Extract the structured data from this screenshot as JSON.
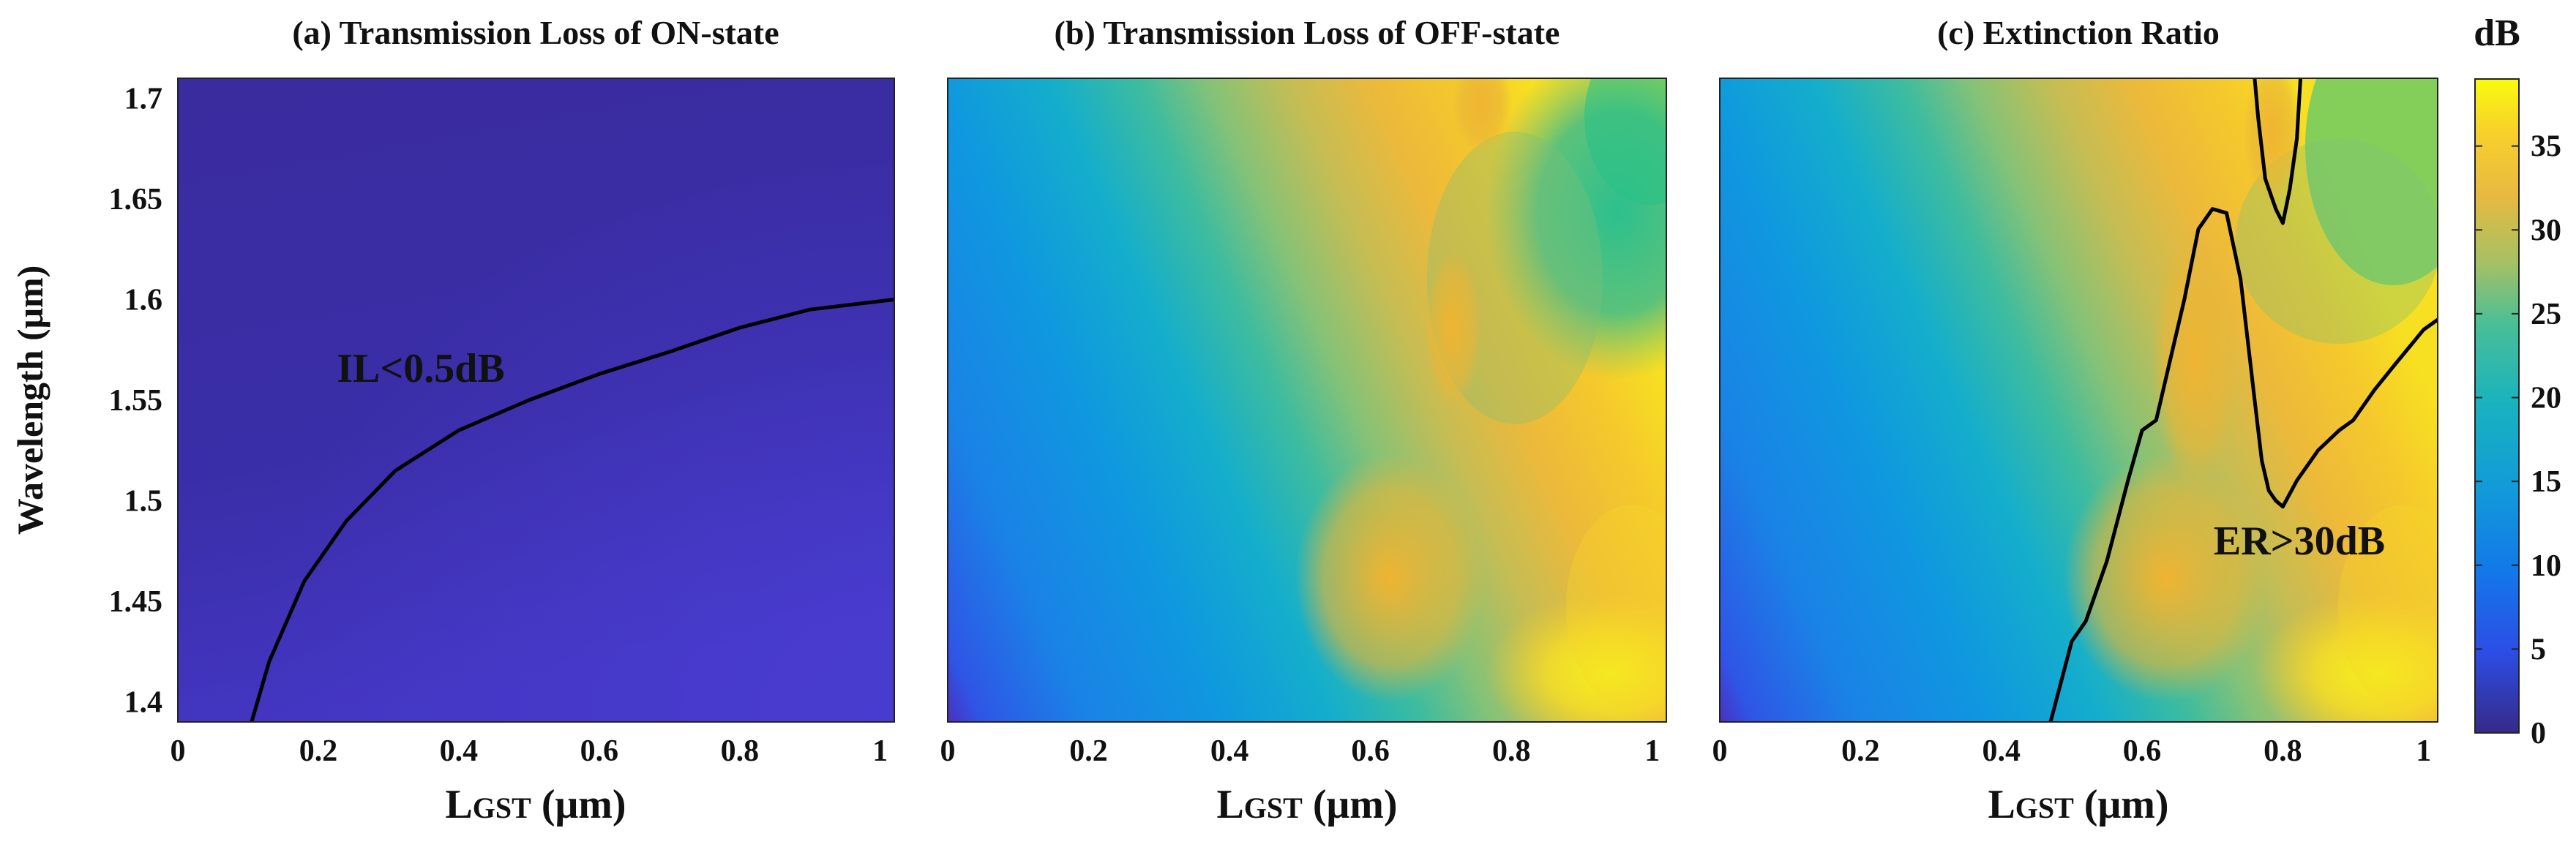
{
  "colors": {
    "parula": [
      "#352a87",
      "#0363e1",
      "#1485d4",
      "#06a7c6",
      "#38b99e",
      "#92bf73",
      "#d9ba56",
      "#fcce2e",
      "#f9fb0e"
    ]
  },
  "chart_data": [
    {
      "id": "a",
      "type": "heatmap",
      "title": "(a) Transmission Loss of ON-state",
      "xlabel_main": "L",
      "xlabel_sub": "GST",
      "xlabel_unit": " (μm)",
      "ylabel": "Wavelength (μm)",
      "xlim": [
        0,
        1.02
      ],
      "ylim": [
        1.39,
        1.71
      ],
      "xticks": [
        "0",
        "0.2",
        "0.4",
        "0.6",
        "0.8",
        "1"
      ],
      "xtick_values": [
        0,
        0.2,
        0.4,
        0.6,
        0.8,
        1
      ],
      "yticks": [
        "1.4",
        "1.45",
        "1.5",
        "1.55",
        "1.6",
        "1.65",
        "1.7"
      ],
      "ytick_values": [
        1.4,
        1.45,
        1.5,
        1.55,
        1.6,
        1.65,
        1.7
      ],
      "annotation": {
        "text": "IL<0.5dB",
        "x": 0.35,
        "y": 1.57
      },
      "contour": {
        "label": "IL = 0.5 dB",
        "x": [
          0.105,
          0.13,
          0.18,
          0.24,
          0.31,
          0.4,
          0.5,
          0.6,
          0.7,
          0.8,
          0.9,
          1.02
        ],
        "y": [
          1.39,
          1.42,
          1.46,
          1.49,
          1.515,
          1.535,
          1.55,
          1.563,
          1.574,
          1.586,
          1.595,
          1.6
        ]
      }
    },
    {
      "id": "b",
      "type": "heatmap",
      "title": "(b) Transmission Loss of OFF-state",
      "xlabel_main": "L",
      "xlabel_sub": "GST",
      "xlabel_unit": " (μm)",
      "xlim": [
        0,
        1.02
      ],
      "ylim": [
        1.39,
        1.71
      ],
      "xticks": [
        "0",
        "0.2",
        "0.4",
        "0.6",
        "0.8",
        "1"
      ],
      "xtick_values": [
        0,
        0.2,
        0.4,
        0.6,
        0.8,
        1
      ]
    },
    {
      "id": "c",
      "type": "heatmap",
      "title": "(c) Extinction Ratio",
      "xlabel_main": "L",
      "xlabel_sub": "GST",
      "xlabel_unit": " (μm)",
      "xlim": [
        0,
        1.02
      ],
      "ylim": [
        1.39,
        1.71
      ],
      "xticks": [
        "0",
        "0.2",
        "0.4",
        "0.6",
        "0.8",
        "1"
      ],
      "xtick_values": [
        0,
        0.2,
        0.4,
        0.6,
        0.8,
        1
      ],
      "annotation": {
        "text": "ER>30dB",
        "x": 0.81,
        "y": 1.475
      },
      "contours": [
        {
          "label": "ER = 30 dB (main region)",
          "x": [
            0.47,
            0.5,
            0.52,
            0.55,
            0.58,
            0.6,
            0.62,
            0.64,
            0.66,
            0.68,
            0.7,
            0.72,
            0.74,
            0.75,
            0.76,
            0.77,
            0.78,
            0.79,
            0.8,
            0.82,
            0.85,
            0.88,
            0.9,
            0.93,
            0.96,
            1.0,
            1.02
          ],
          "y": [
            1.39,
            1.43,
            1.44,
            1.47,
            1.51,
            1.535,
            1.54,
            1.57,
            1.6,
            1.635,
            1.645,
            1.643,
            1.61,
            1.58,
            1.55,
            1.52,
            1.505,
            1.5,
            1.497,
            1.51,
            1.525,
            1.535,
            1.54,
            1.555,
            1.568,
            1.585,
            1.59
          ]
        },
        {
          "label": "ER = 30 dB (upper loop)",
          "x": [
            0.76,
            0.765,
            0.775,
            0.79,
            0.8,
            0.81,
            0.82,
            0.825
          ],
          "y": [
            1.71,
            1.69,
            1.66,
            1.645,
            1.638,
            1.655,
            1.68,
            1.71
          ]
        }
      ]
    },
    {
      "id": "colorbar",
      "type": "colorbar",
      "title": "dB",
      "range": [
        0,
        39
      ],
      "ticks": [
        "0",
        "5",
        "10",
        "15",
        "20",
        "25",
        "30",
        "35"
      ],
      "tick_values": [
        0,
        5,
        10,
        15,
        20,
        25,
        30,
        35
      ]
    }
  ]
}
